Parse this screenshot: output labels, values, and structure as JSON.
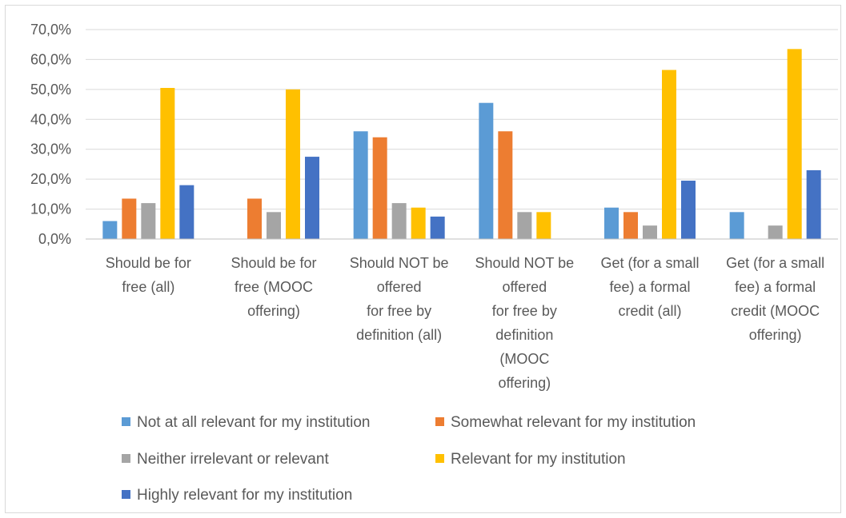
{
  "chart_data": {
    "type": "bar",
    "title": "",
    "xlabel": "",
    "ylabel": "",
    "ylim": [
      0,
      70
    ],
    "ytick_step": 10,
    "ytick_format": "comma1pct",
    "grid": true,
    "legend_position": "bottom",
    "categories": [
      [
        "Should be for",
        "free (all)"
      ],
      [
        "Should be for",
        "free (MOOC",
        "offering)"
      ],
      [
        "Should NOT be",
        "offered",
        "for free by",
        "definition (all)"
      ],
      [
        "Should NOT be",
        "offered",
        "for free by",
        "definition",
        "(MOOC",
        "offering)"
      ],
      [
        "Get (for a small",
        "fee) a formal",
        "credit (all)"
      ],
      [
        "Get (for a small",
        "fee) a formal",
        "credit (MOOC",
        "offering)"
      ]
    ],
    "series": [
      {
        "name": "Not at all relevant for my institution",
        "color": "#5B9BD5",
        "values": [
          6.0,
          0.0,
          36.0,
          45.5,
          10.5,
          9.0
        ]
      },
      {
        "name": "Somewhat relevant for my institution",
        "color": "#ED7D31",
        "values": [
          13.5,
          13.5,
          34.0,
          36.0,
          9.0,
          0.0
        ]
      },
      {
        "name": "Neither irrelevant or relevant",
        "color": "#A5A5A5",
        "values": [
          12.0,
          9.0,
          12.0,
          9.0,
          4.5,
          4.5
        ]
      },
      {
        "name": "Relevant for my institution",
        "color": "#FFC000",
        "values": [
          50.5,
          50.0,
          10.5,
          9.0,
          56.5,
          63.5
        ]
      },
      {
        "name": "Highly relevant for my institution",
        "color": "#4472C4",
        "values": [
          18.0,
          27.5,
          7.5,
          0.0,
          19.5,
          23.0
        ]
      }
    ]
  }
}
